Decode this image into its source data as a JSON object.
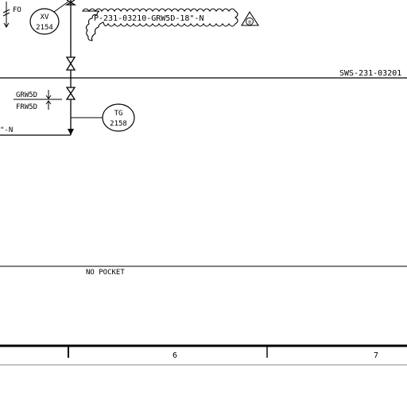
{
  "instruments": [
    {
      "tag": "XV",
      "number": "2154"
    },
    {
      "tag": "TG",
      "number": "2158"
    }
  ],
  "line_labels": {
    "clouded_line": "P-231-03210-GRW5D-18\"-N",
    "drawing_ref": "SWS-231-03201",
    "left_line_tail": "\"-N"
  },
  "annotations": {
    "fail_position": "FO",
    "grw_tag": "GRW5D",
    "frw_tag": "FRW5D",
    "no_pocket": "NO POCKET",
    "revision_mark": "0"
  },
  "border": {
    "zones": [
      "6",
      "7"
    ]
  }
}
